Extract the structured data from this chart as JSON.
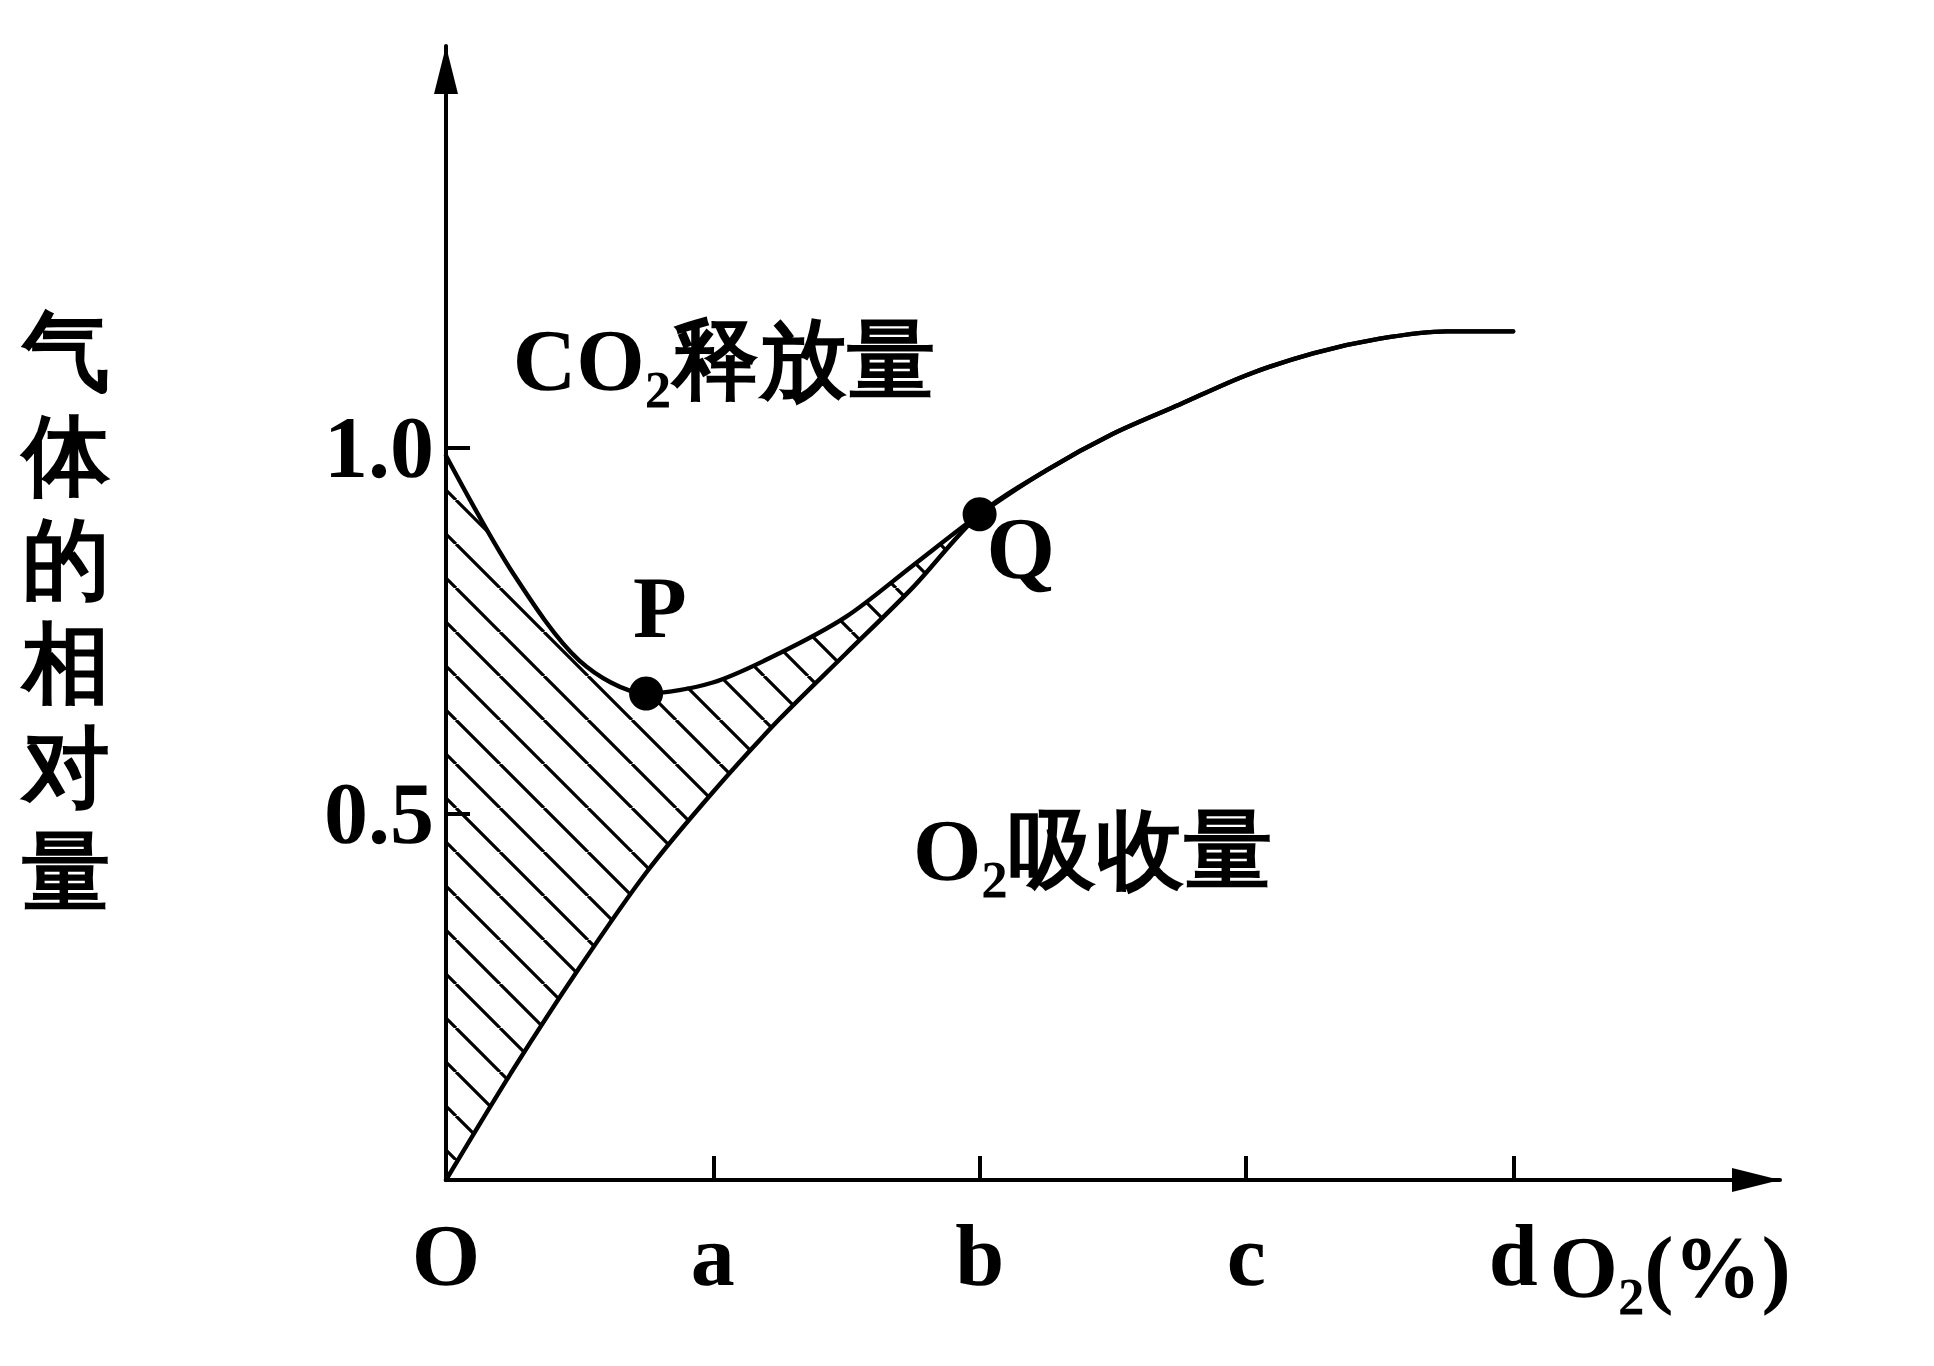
{
  "chart_data": {
    "type": "line",
    "ylabel": "气体的相对量",
    "xlabel": "O₂(%)",
    "categories": [
      "O",
      null,
      null,
      null,
      "a",
      null,
      null,
      null,
      "b",
      null,
      null,
      null,
      "c",
      null,
      null,
      null,
      "d",
      null,
      null,
      null,
      null
    ],
    "ylim": [
      0,
      1.55
    ],
    "yticks": [
      0.5,
      {
        "value": 1,
        "label": "1.0"
      }
    ],
    "grid": false,
    "marker": "none",
    "line_style": "solid",
    "series": [
      {
        "name": "CO₂释放量",
        "color": "#000000",
        "values": [
          0.99,
          0.83,
          0.71,
          0.665,
          0.68,
          0.72,
          0.77,
          0.84,
          0.91,
          0.97,
          1.02,
          1.06,
          1.1,
          1.13,
          1.15,
          1.16,
          1.16,
          null,
          null,
          null,
          null
        ]
      },
      {
        "name": "O₂吸收量",
        "color": "#000000",
        "values": [
          0,
          0.15,
          0.29,
          0.42,
          0.53,
          0.63,
          0.72,
          0.81,
          0.91,
          0.97,
          1.02,
          1.06,
          1.1,
          1.13,
          1.15,
          1.16,
          1.16,
          null,
          null,
          null,
          null
        ]
      }
    ],
    "annotations": [
      "P",
      "Q"
    ]
  }
}
